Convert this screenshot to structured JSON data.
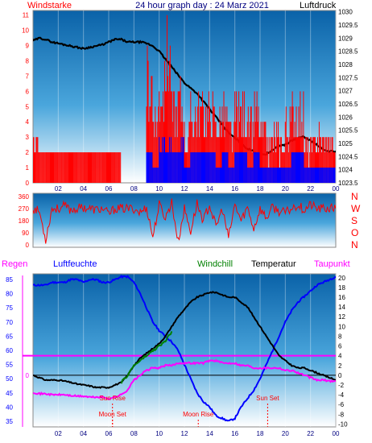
{
  "chart_data": [
    {
      "type": "line",
      "id": "wind-pressure",
      "title": "24 hour graph day : 24 Marz 2021",
      "left_axis_title": "Windstarke",
      "right_axis_title": "Luftdruck",
      "y_left_ticks": [
        "0",
        "1",
        "2",
        "3",
        "4",
        "5",
        "6",
        "7",
        "8",
        "9",
        "10",
        "11"
      ],
      "y_left_range": [
        0,
        11.3
      ],
      "y_right_ticks": [
        "1023.5",
        "1024",
        "1024.5",
        "1025",
        "1025.5",
        "1026",
        "1026.5",
        "1027",
        "1027.5",
        "1028",
        "1028.5",
        "1029",
        "1029.5",
        "1030"
      ],
      "y_right_range": [
        1023.5,
        1030.05
      ],
      "x_ticks": [
        "02",
        "04",
        "06",
        "08",
        "10",
        "12",
        "14",
        "16",
        "18",
        "20",
        "22",
        "00"
      ],
      "x_range_hours": [
        0,
        24
      ],
      "series": [
        {
          "color": "#000000",
          "axis": "right",
          "x": [
            0,
            0.5,
            1,
            1.5,
            2,
            2.5,
            3,
            3.5,
            4,
            4.5,
            5,
            5.5,
            6,
            6.5,
            7,
            7.5,
            8,
            8.5,
            9,
            9.5,
            10,
            10.5,
            11,
            11.5,
            12,
            12.5,
            13,
            13.5,
            14,
            14.5,
            15,
            15.5,
            16,
            16.5,
            17,
            17.5,
            18,
            18.5,
            19,
            19.5,
            20,
            20.5,
            21,
            21.5,
            22,
            22.5,
            23,
            23.5,
            24
          ],
          "values": [
            1028.9,
            1029.0,
            1028.95,
            1028.85,
            1028.8,
            1028.75,
            1028.7,
            1028.65,
            1028.6,
            1028.65,
            1028.7,
            1028.75,
            1028.85,
            1028.95,
            1028.95,
            1028.85,
            1028.85,
            1028.85,
            1028.8,
            1028.7,
            1028.5,
            1028.2,
            1027.9,
            1027.6,
            1027.3,
            1027.1,
            1026.9,
            1026.6,
            1026.3,
            1026.0,
            1025.7,
            1025.4,
            1025.2,
            1025.0,
            1024.8,
            1024.7,
            1024.55,
            1024.6,
            1024.75,
            1024.9,
            1024.95,
            1025.1,
            1025.2,
            1025.25,
            1025.1,
            1024.95,
            1024.75,
            1024.7,
            1024.7
          ]
        },
        {
          "color": "#ff0000",
          "axis": "left",
          "kind": "wind-gust",
          "x": [
            0,
            0.5,
            1,
            1.5,
            2,
            2.5,
            3,
            3.5,
            4,
            4.5,
            5,
            5.5,
            6,
            6.5,
            7,
            7.5,
            8,
            8.5,
            9,
            9.5,
            10,
            10.5,
            11,
            11.5,
            12,
            12.5,
            13,
            13.5,
            14,
            14.5,
            15,
            15.5,
            16,
            16.5,
            17,
            17.5,
            18,
            18.5,
            19,
            19.5,
            20,
            20.5,
            21,
            21.5,
            22,
            22.5,
            23,
            23.5,
            24
          ],
          "values": [
            3.5,
            2,
            2,
            2,
            2,
            2,
            2,
            2,
            2,
            2,
            2,
            2,
            2,
            2,
            0,
            0,
            0,
            0,
            9,
            6,
            8,
            11,
            6,
            7,
            4,
            6,
            6,
            6,
            6,
            5,
            6,
            4,
            6,
            6,
            5,
            6,
            4,
            3,
            4,
            3,
            5,
            6,
            6,
            3,
            3,
            4,
            4,
            3,
            3
          ]
        },
        {
          "color": "#0000ff",
          "axis": "left",
          "kind": "wind-average",
          "x": [
            0,
            0.5,
            1,
            1.5,
            2,
            2.5,
            3,
            3.5,
            4,
            4.5,
            5,
            5.5,
            6,
            6.5,
            7,
            7.5,
            8,
            8.5,
            9,
            9.5,
            10,
            10.5,
            11,
            11.5,
            12,
            12.5,
            13,
            13.5,
            14,
            14.5,
            15,
            15.5,
            16,
            16.5,
            17,
            17.5,
            18,
            18.5,
            19,
            19.5,
            20,
            20.5,
            21,
            21.5,
            22,
            22.5,
            23,
            23.5,
            24
          ],
          "values": [
            0,
            0,
            0,
            0,
            0,
            0,
            0,
            0,
            0,
            0,
            0,
            0,
            0,
            0,
            0,
            0,
            0,
            0,
            2,
            1,
            3,
            3,
            2,
            3,
            1,
            2,
            2,
            2,
            2,
            1,
            2,
            1,
            2,
            2,
            1,
            2,
            1,
            1,
            1,
            1,
            1,
            2,
            2,
            1,
            1,
            1,
            1,
            1,
            1
          ]
        }
      ]
    },
    {
      "type": "line",
      "id": "wind-direction",
      "y_ticks": [
        "0",
        "90",
        "180",
        "270",
        "360"
      ],
      "y_range": [
        0,
        360
      ],
      "direction_labels": [
        "N",
        "W",
        "S",
        "O",
        "N"
      ],
      "x_range_hours": [
        0,
        24
      ],
      "series": [
        {
          "color": "#ff0000",
          "x": [
            0,
            0.5,
            1,
            1.5,
            2,
            2.5,
            3,
            3.5,
            4,
            4.5,
            5,
            5.5,
            6,
            6.5,
            7,
            7.5,
            8,
            8.5,
            9,
            9.5,
            10,
            10.5,
            11,
            11.5,
            12,
            12.5,
            13,
            13.5,
            14,
            14.5,
            15,
            15.5,
            16,
            16.5,
            17,
            17.5,
            18,
            18.5,
            19,
            19.5,
            20,
            20.5,
            21,
            21.5,
            22,
            22.5,
            23,
            23.5,
            24
          ],
          "values": [
            270,
            250,
            40,
            270,
            270,
            290,
            260,
            270,
            280,
            270,
            260,
            270,
            230,
            270,
            270,
            270,
            270,
            240,
            280,
            60,
            300,
            200,
            320,
            20,
            270,
            100,
            310,
            180,
            300,
            130,
            270,
            50,
            300,
            180,
            280,
            120,
            270,
            200,
            280,
            250,
            240,
            270,
            300,
            260,
            300,
            270,
            270,
            270,
            270
          ]
        }
      ]
    },
    {
      "type": "line",
      "id": "temperature-humidity",
      "left_axis_title_1": "Regen",
      "left_axis_title_2": "Luftfeuchte",
      "legend": [
        "Windchill",
        "Temperatur",
        "Taupunkt"
      ],
      "y_left_ticks": [
        "35",
        "40",
        "45",
        "50",
        "55",
        "60",
        "65",
        "70",
        "75",
        "80",
        "85"
      ],
      "y_left_range": [
        33,
        87
      ],
      "y_right_ticks": [
        "-10",
        "-8",
        "-6",
        "-4",
        "-2",
        "0",
        "2",
        "4",
        "6",
        "8",
        "10",
        "12",
        "14",
        "16",
        "18",
        "20"
      ],
      "y_right_range": [
        -10.6,
        20.8
      ],
      "regen_marker": "0",
      "x_ticks": [
        "02",
        "04",
        "06",
        "08",
        "10",
        "12",
        "14",
        "16",
        "18",
        "20",
        "22",
        "00"
      ],
      "x_range_hours": [
        0,
        24
      ],
      "events": [
        {
          "label": "Sun Rise",
          "hour": 6.3
        },
        {
          "label": "Moon Set",
          "hour": 6.3
        },
        {
          "label": "Moon Rise",
          "hour": 13.1
        },
        {
          "label": "Sun Set",
          "hour": 18.6
        }
      ],
      "series": [
        {
          "name": "Luftfeuchte",
          "color": "#0000ff",
          "axis": "left",
          "x": [
            0,
            0.5,
            1,
            1.5,
            2,
            2.5,
            3,
            3.5,
            4,
            4.5,
            5,
            5.5,
            6,
            6.5,
            7,
            7.5,
            8,
            8.5,
            9,
            9.5,
            10,
            10.5,
            11,
            11.5,
            12,
            12.5,
            13,
            13.5,
            14,
            14.5,
            15,
            15.5,
            16,
            16.5,
            17,
            17.5,
            18,
            18.5,
            19,
            19.5,
            20,
            20.5,
            21,
            21.5,
            22,
            22.5,
            23,
            23.5,
            24
          ],
          "values": [
            83,
            83,
            83,
            84,
            84,
            84,
            85,
            85,
            84,
            85,
            85,
            84,
            84,
            85,
            86,
            86,
            84,
            80,
            75,
            70,
            67,
            65,
            63,
            60,
            55,
            50,
            45,
            42,
            40,
            37,
            36,
            35,
            36,
            40,
            43,
            46,
            50,
            55,
            60,
            65,
            70,
            74,
            77,
            79,
            81,
            83,
            84,
            85,
            86
          ]
        },
        {
          "name": "Temperatur",
          "color": "#000000",
          "axis": "right",
          "x": [
            0,
            0.5,
            1,
            1.5,
            2,
            2.5,
            3,
            3.5,
            4,
            4.5,
            5,
            5.5,
            6,
            6.5,
            7,
            7.5,
            8,
            8.5,
            9,
            9.5,
            10,
            10.5,
            11,
            11.5,
            12,
            12.5,
            13,
            13.5,
            14,
            14.5,
            15,
            15.5,
            16,
            16.5,
            17,
            17.5,
            18,
            18.5,
            19,
            19.5,
            20,
            20.5,
            21,
            21.5,
            22,
            22.5,
            23,
            23.5,
            24
          ],
          "values": [
            0,
            -0.5,
            -1,
            -1,
            -1,
            -1.2,
            -1.5,
            -1.8,
            -2,
            -2.2,
            -2.5,
            -2.5,
            -2.5,
            -2,
            -1.5,
            0,
            2,
            3.5,
            4.5,
            5.5,
            6.5,
            8,
            10,
            12,
            13.5,
            15,
            16,
            16.5,
            17,
            17,
            16.5,
            16,
            16,
            15,
            14,
            12,
            10,
            8,
            6,
            4,
            3,
            2,
            1.5,
            1.5,
            1,
            0.5,
            0,
            -0.5,
            -1
          ]
        },
        {
          "name": "Windchill",
          "color": "#008000",
          "axis": "right",
          "x": [
            7,
            7.5,
            8,
            8.5,
            9,
            9.5,
            10,
            10.5,
            11
          ],
          "values": [
            -1.5,
            0,
            2,
            3,
            4,
            5,
            6,
            7,
            9
          ]
        },
        {
          "name": "Taupunkt",
          "color": "#ff00ff",
          "axis": "right",
          "x": [
            0,
            0.5,
            1,
            1.5,
            2,
            2.5,
            3,
            3.5,
            4,
            4.5,
            5,
            5.5,
            6,
            6.5,
            7,
            7.5,
            8,
            8.5,
            9,
            9.5,
            10,
            10.5,
            11,
            11.5,
            12,
            12.5,
            13,
            13.5,
            14,
            14.5,
            15,
            15.5,
            16,
            16.5,
            17,
            17.5,
            18,
            18.5,
            19,
            19.5,
            20,
            20.5,
            21,
            21.5,
            22,
            22.5,
            23,
            23.5,
            24
          ],
          "values": [
            -3.5,
            -3.8,
            -3.8,
            -4,
            -4,
            -4,
            -4.2,
            -4.3,
            -4.3,
            -4.5,
            -4.5,
            -4.5,
            -4.8,
            -4.5,
            -4,
            -3,
            -1,
            0,
            1,
            1.5,
            1.5,
            2,
            2,
            2.5,
            2.5,
            2.5,
            2.5,
            2.5,
            3,
            3,
            2.5,
            2.5,
            2.5,
            2,
            2,
            1.5,
            1.5,
            1.5,
            1.5,
            1.5,
            1,
            1,
            0.5,
            0,
            -0.5,
            -1,
            -1,
            -1.2,
            -1.2
          ]
        }
      ]
    }
  ]
}
